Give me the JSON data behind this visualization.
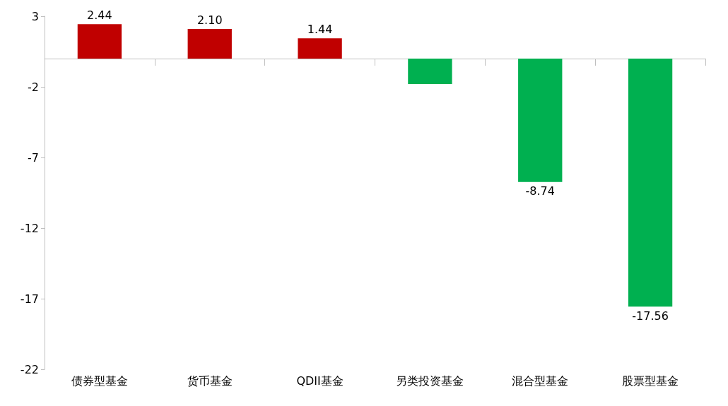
{
  "chart_data": {
    "type": "bar",
    "categories": [
      "债券型基金",
      "货币基金",
      "QDII基金",
      "另类投资基金",
      "混合型基金",
      "股票型基金"
    ],
    "values": [
      2.44,
      2.1,
      1.44,
      -1.8,
      -8.74,
      -17.56
    ],
    "colors": [
      "#c00000",
      "#c00000",
      "#c00000",
      "#00b050",
      "#00b050",
      "#00b050"
    ],
    "value_labels": [
      "2.44",
      "2.10",
      "1.44",
      null,
      "-8.74",
      "-17.56"
    ],
    "ylim": [
      -22,
      3
    ],
    "yticks": [
      -22,
      -17,
      -12,
      -7,
      -2,
      3
    ],
    "grid": false
  }
}
